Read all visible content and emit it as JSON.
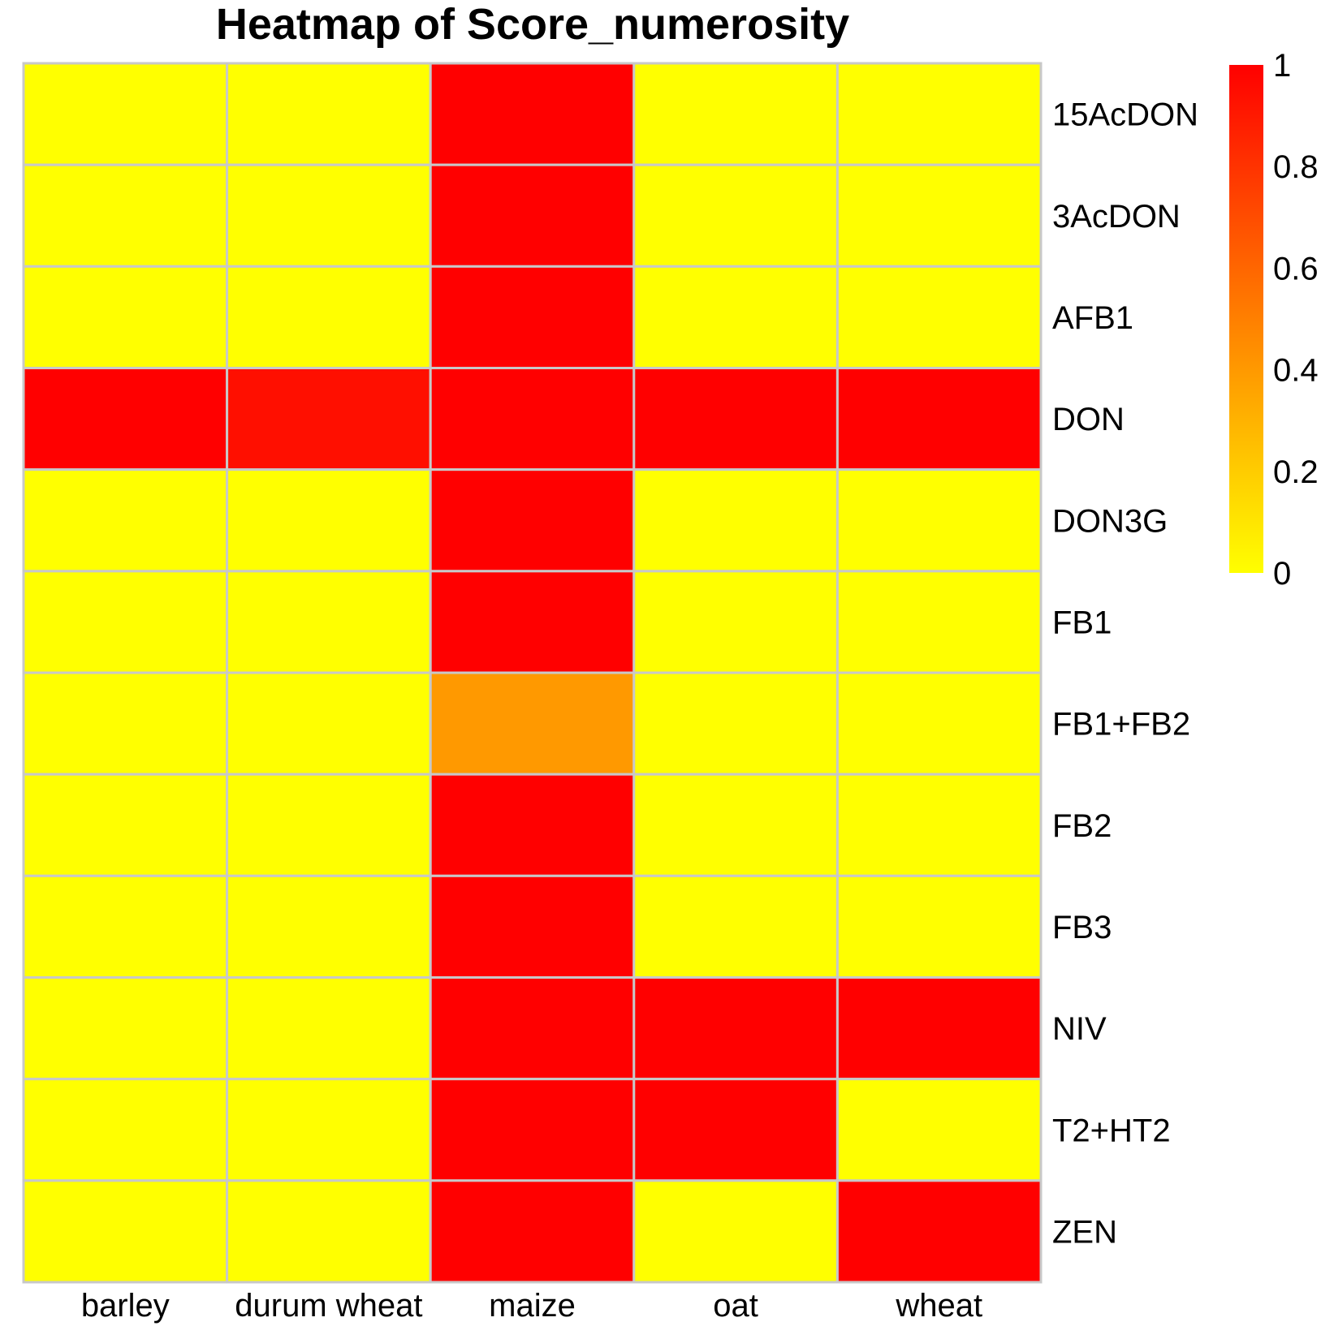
{
  "chart_data": {
    "type": "heatmap",
    "title": "Heatmap  of  Score_numerosity",
    "columns": [
      "barley",
      "durum wheat",
      "maize",
      "oat",
      "wheat"
    ],
    "rows": [
      "15AcDON",
      "3AcDON",
      "AFB1",
      "DON",
      "DON3G",
      "FB1",
      "FB1+FB2",
      "FB2",
      "FB3",
      "NIV",
      "T2+HT2",
      "ZEN"
    ],
    "values": [
      [
        0,
        0,
        1,
        0,
        0
      ],
      [
        0,
        0,
        1,
        0,
        0
      ],
      [
        0,
        0,
        1,
        0,
        0
      ],
      [
        1,
        0.94,
        1,
        1,
        1
      ],
      [
        0,
        0,
        1,
        0,
        0
      ],
      [
        0,
        0,
        1,
        0,
        0
      ],
      [
        0,
        0,
        0.4,
        0,
        0
      ],
      [
        0,
        0,
        1,
        0,
        0
      ],
      [
        0,
        0,
        1,
        0,
        0
      ],
      [
        0,
        0,
        1,
        1,
        1
      ],
      [
        0,
        0,
        1,
        1,
        0
      ],
      [
        0,
        0,
        1,
        0,
        1
      ]
    ],
    "color_scale": {
      "low": "#FFFF00",
      "mid": "#FF9900",
      "high": "#FF0000",
      "range": [
        0,
        1
      ],
      "ticks": [
        "1",
        "0.8",
        "0.6",
        "0.4",
        "0.2",
        "0"
      ],
      "tick_values": [
        1,
        0.8,
        0.6,
        0.4,
        0.2,
        0
      ]
    },
    "grid_color": "#C8C8C8",
    "legend_position": "top-right"
  }
}
